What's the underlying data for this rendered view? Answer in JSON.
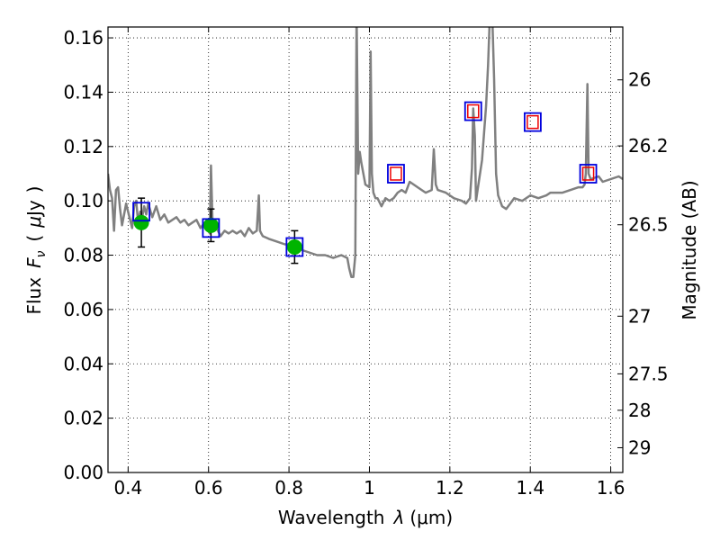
{
  "chart_data": {
    "type": "line",
    "title": "",
    "xlabel": "Wavelength",
    "xlabel_symbol": "λ",
    "xlabel_unit": "(μm)",
    "ylabel": "Flux",
    "ylabel_symbol": "F",
    "ylabel_symbol_sub": "ν",
    "ylabel_unit_open": "(",
    "ylabel_unit_mu": "μ",
    "ylabel_unit": "Jy",
    "ylabel_unit_close": ")",
    "y2label": "Magnitude (AB)",
    "xlim": [
      0.35,
      1.63
    ],
    "ylim": [
      0.0,
      0.164
    ],
    "grid": true,
    "x_ticks": [
      {
        "value": 0.4,
        "label": "0.4"
      },
      {
        "value": 0.6,
        "label": "0.6"
      },
      {
        "value": 0.8,
        "label": "0.8"
      },
      {
        "value": 1.0,
        "label": "1"
      },
      {
        "value": 1.2,
        "label": "1.2"
      },
      {
        "value": 1.4,
        "label": "1.4"
      },
      {
        "value": 1.6,
        "label": "1.6"
      }
    ],
    "y_ticks": [
      {
        "value": 0.0,
        "label": "0.00"
      },
      {
        "value": 0.02,
        "label": "0.02"
      },
      {
        "value": 0.04,
        "label": "0.04"
      },
      {
        "value": 0.06,
        "label": "0.06"
      },
      {
        "value": 0.08,
        "label": "0.08"
      },
      {
        "value": 0.1,
        "label": "0.10"
      },
      {
        "value": 0.12,
        "label": "0.12"
      },
      {
        "value": 0.14,
        "label": "0.14"
      },
      {
        "value": 0.16,
        "label": "0.16"
      }
    ],
    "y2_ticks": [
      {
        "magnitude": 26,
        "label": "26"
      },
      {
        "magnitude": 26.2,
        "label": "26.2"
      },
      {
        "magnitude": 26.5,
        "label": "26.5"
      },
      {
        "magnitude": 27,
        "label": "27"
      },
      {
        "magnitude": 27.5,
        "label": "27.5"
      },
      {
        "magnitude": 28,
        "label": "28"
      },
      {
        "magnitude": 29,
        "label": "29"
      }
    ],
    "series": [
      {
        "name": "model spectrum",
        "color": "#808080",
        "x": [
          0.35,
          0.355,
          0.36,
          0.365,
          0.37,
          0.375,
          0.38,
          0.385,
          0.39,
          0.395,
          0.4,
          0.405,
          0.41,
          0.415,
          0.42,
          0.425,
          0.43,
          0.435,
          0.44,
          0.445,
          0.45,
          0.46,
          0.47,
          0.48,
          0.49,
          0.5,
          0.51,
          0.52,
          0.53,
          0.54,
          0.55,
          0.56,
          0.57,
          0.58,
          0.59,
          0.6,
          0.603,
          0.606,
          0.61,
          0.62,
          0.63,
          0.64,
          0.65,
          0.66,
          0.67,
          0.68,
          0.69,
          0.7,
          0.71,
          0.72,
          0.725,
          0.728,
          0.731,
          0.735,
          0.75,
          0.77,
          0.79,
          0.81,
          0.83,
          0.85,
          0.87,
          0.89,
          0.91,
          0.93,
          0.945,
          0.95,
          0.955,
          0.96,
          0.965,
          0.968,
          0.972,
          0.976,
          0.98,
          0.99,
          1.0,
          1.003,
          1.006,
          1.01,
          1.015,
          1.02,
          1.03,
          1.04,
          1.05,
          1.06,
          1.07,
          1.08,
          1.09,
          1.1,
          1.12,
          1.14,
          1.155,
          1.16,
          1.165,
          1.17,
          1.19,
          1.21,
          1.23,
          1.24,
          1.25,
          1.255,
          1.258,
          1.262,
          1.265,
          1.27,
          1.28,
          1.29,
          1.295,
          1.3,
          1.305,
          1.31,
          1.315,
          1.32,
          1.33,
          1.34,
          1.35,
          1.36,
          1.38,
          1.4,
          1.42,
          1.44,
          1.45,
          1.46,
          1.48,
          1.5,
          1.52,
          1.53,
          1.535,
          1.538,
          1.542,
          1.545,
          1.55,
          1.57,
          1.58,
          1.6,
          1.62,
          1.63
        ],
        "y": [
          0.11,
          0.104,
          0.101,
          0.089,
          0.104,
          0.105,
          0.097,
          0.091,
          0.095,
          0.099,
          0.096,
          0.093,
          0.09,
          0.098,
          0.1,
          0.092,
          0.096,
          0.094,
          0.098,
          0.095,
          0.099,
          0.094,
          0.098,
          0.093,
          0.095,
          0.092,
          0.093,
          0.094,
          0.092,
          0.093,
          0.091,
          0.092,
          0.093,
          0.09,
          0.092,
          0.089,
          0.088,
          0.113,
          0.091,
          0.09,
          0.087,
          0.089,
          0.088,
          0.089,
          0.088,
          0.089,
          0.087,
          0.09,
          0.088,
          0.089,
          0.102,
          0.089,
          0.088,
          0.087,
          0.086,
          0.085,
          0.084,
          0.084,
          0.082,
          0.081,
          0.08,
          0.08,
          0.079,
          0.08,
          0.079,
          0.075,
          0.072,
          0.072,
          0.08,
          0.17,
          0.11,
          0.118,
          0.114,
          0.106,
          0.105,
          0.155,
          0.11,
          0.103,
          0.101,
          0.101,
          0.098,
          0.101,
          0.1,
          0.101,
          0.103,
          0.104,
          0.103,
          0.107,
          0.105,
          0.103,
          0.104,
          0.119,
          0.106,
          0.104,
          0.103,
          0.101,
          0.1,
          0.099,
          0.101,
          0.112,
          0.134,
          0.124,
          0.1,
          0.105,
          0.115,
          0.135,
          0.15,
          0.17,
          0.17,
          0.145,
          0.11,
          0.102,
          0.098,
          0.097,
          0.099,
          0.101,
          0.1,
          0.102,
          0.101,
          0.102,
          0.103,
          0.103,
          0.103,
          0.104,
          0.105,
          0.105,
          0.106,
          0.11,
          0.143,
          0.11,
          0.108,
          0.109,
          0.107,
          0.108,
          0.109,
          0.108
        ]
      },
      {
        "name": "observed photometry (green)",
        "color": "#00b400",
        "points": [
          {
            "x": 0.433,
            "y": 0.092,
            "yerr": 0.009
          },
          {
            "x": 0.606,
            "y": 0.091,
            "yerr": 0.006
          },
          {
            "x": 0.814,
            "y": 0.083,
            "yerr": 0.006
          }
        ]
      },
      {
        "name": "synthetic photometry (blue squares)",
        "color": "#0000dd",
        "points": [
          {
            "x": 0.433,
            "y": 0.096
          },
          {
            "x": 0.606,
            "y": 0.09
          },
          {
            "x": 0.814,
            "y": 0.083
          },
          {
            "x": 1.066,
            "y": 0.11
          },
          {
            "x": 1.258,
            "y": 0.133
          },
          {
            "x": 1.406,
            "y": 0.129
          },
          {
            "x": 1.544,
            "y": 0.11
          }
        ]
      },
      {
        "name": "model photometry (red squares)",
        "color": "#ee0000",
        "points": [
          {
            "x": 1.066,
            "y": 0.11
          },
          {
            "x": 1.258,
            "y": 0.133
          },
          {
            "x": 1.406,
            "y": 0.129
          },
          {
            "x": 1.544,
            "y": 0.11
          }
        ]
      }
    ]
  }
}
